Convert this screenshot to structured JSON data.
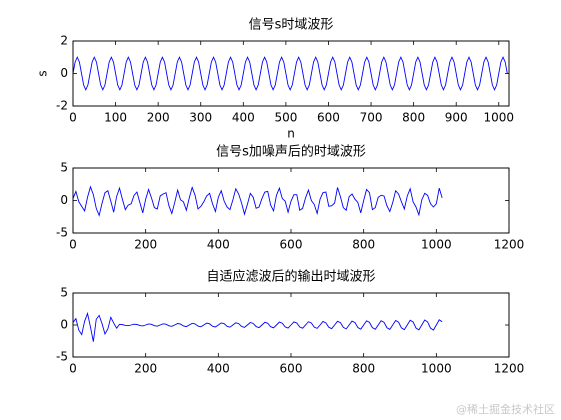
{
  "chart_data": [
    {
      "type": "line",
      "title": "信号s时域波形",
      "xlabel": "n",
      "ylabel": "s",
      "color": "#0000ff",
      "xlim": [
        0,
        1024
      ],
      "ylim": [
        -2,
        2
      ],
      "xticks": [
        0,
        100,
        200,
        300,
        400,
        500,
        600,
        700,
        800,
        900,
        1000
      ],
      "yticks": [
        -2,
        0,
        2
      ],
      "x": [
        0,
        5,
        10,
        15,
        20,
        25,
        30,
        35,
        40,
        45,
        50,
        55,
        60,
        65,
        70,
        75,
        80,
        85,
        90,
        95,
        100,
        105,
        110,
        115,
        120,
        125,
        130,
        135,
        140,
        145,
        150,
        155,
        160,
        165,
        170,
        175,
        180,
        185,
        190,
        195,
        200,
        205,
        210,
        215,
        220,
        225,
        230,
        235,
        240,
        245,
        250,
        255,
        260,
        265,
        270,
        275,
        280,
        285,
        290,
        295,
        300,
        305,
        310,
        315,
        320,
        325,
        330,
        335,
        340,
        345,
        350,
        355,
        360,
        365,
        370,
        375,
        380,
        385,
        390,
        395,
        400,
        405,
        410,
        415,
        420,
        425,
        430,
        435,
        440,
        445,
        450,
        455,
        460,
        465,
        470,
        475,
        480,
        485,
        490,
        495,
        500,
        505,
        510,
        515,
        520,
        525,
        530,
        535,
        540,
        545,
        550,
        555,
        560,
        565,
        570,
        575,
        580,
        585,
        590,
        595,
        600,
        605,
        610,
        615,
        620,
        625,
        630,
        635,
        640,
        645,
        650,
        655,
        660,
        665,
        670,
        675,
        680,
        685,
        690,
        695,
        700,
        705,
        710,
        715,
        720,
        725,
        730,
        735,
        740,
        745,
        750,
        755,
        760,
        765,
        770,
        775,
        780,
        785,
        790,
        795,
        800,
        805,
        810,
        815,
        820,
        825,
        830,
        835,
        840,
        845,
        850,
        855,
        860,
        865,
        870,
        875,
        880,
        885,
        890,
        895,
        900,
        905,
        910,
        915,
        920,
        925,
        930,
        935,
        940,
        945,
        950,
        955,
        960,
        965,
        970,
        975,
        980,
        985,
        990,
        995,
        1000,
        1005,
        1010,
        1015,
        1020
      ],
      "values": [
        0,
        0.71,
        1,
        0.71,
        0,
        -0.71,
        -1,
        -0.71,
        0,
        0.71,
        1,
        0.71,
        0,
        -0.71,
        -1,
        -0.71,
        0,
        0.71,
        1,
        0.71,
        0,
        -0.71,
        -1,
        -0.71,
        0,
        0.71,
        1,
        0.71,
        0,
        -0.71,
        -1,
        -0.71,
        0,
        0.71,
        1,
        0.71,
        0,
        -0.71,
        -1,
        -0.71,
        0,
        0.71,
        1,
        0.71,
        0,
        -0.71,
        -1,
        -0.71,
        0,
        0.71,
        1,
        0.71,
        0,
        -0.71,
        -1,
        -0.71,
        0,
        0.71,
        1,
        0.71,
        0,
        -0.71,
        -1,
        -0.71,
        0,
        0.71,
        1,
        0.71,
        0,
        -0.71,
        -1,
        -0.71,
        0,
        0.71,
        1,
        0.71,
        0,
        -0.71,
        -1,
        -0.71,
        0,
        0.71,
        1,
        0.71,
        0,
        -0.71,
        -1,
        -0.71,
        0,
        0.71,
        1,
        0.71,
        0,
        -0.71,
        -1,
        -0.71,
        0,
        0.71,
        1,
        0.71,
        0,
        -0.71,
        -1,
        -0.71,
        0,
        0.71,
        1,
        0.71,
        0,
        -0.71,
        -1,
        -0.71,
        0,
        0.71,
        1,
        0.71,
        0,
        -0.71,
        -1,
        -0.71,
        0,
        0.71,
        1,
        0.71,
        0,
        -0.71,
        -1,
        -0.71,
        0,
        0.71,
        1,
        0.71,
        0,
        -0.71,
        -1,
        -0.71,
        0,
        0.71,
        1,
        0.71,
        0,
        -0.71,
        -1,
        -0.71,
        0,
        0.71,
        1,
        0.71,
        0,
        -0.71,
        -1,
        -0.71,
        0,
        0.71,
        1,
        0.71,
        0,
        -0.71,
        -1,
        -0.71,
        0,
        0.71,
        1,
        0.71,
        0,
        -0.71,
        -1,
        -0.71,
        0,
        0.71,
        1,
        0.71,
        0,
        -0.71,
        -1,
        -0.71,
        0,
        0.71,
        1,
        0.71,
        0,
        -0.71,
        -1,
        -0.71,
        0,
        0.71,
        1,
        0.71,
        0,
        -0.71,
        -1,
        -0.71,
        0,
        0.71,
        1,
        0.71,
        0,
        -0.71,
        -1,
        -0.71,
        0,
        0.71,
        1,
        0.71,
        0
      ]
    },
    {
      "type": "line",
      "title": "信号s加噪声后的时域波形",
      "color": "#0000ff",
      "xlim": [
        0,
        1200
      ],
      "ylim": [
        -5,
        5
      ],
      "xticks": [
        0,
        200,
        400,
        600,
        800,
        1000,
        1200
      ],
      "yticks": [
        -5,
        0,
        5
      ],
      "x": [
        0,
        8,
        16,
        24,
        32,
        40,
        48,
        56,
        64,
        72,
        80,
        88,
        96,
        104,
        112,
        120,
        128,
        136,
        144,
        152,
        160,
        168,
        176,
        184,
        192,
        200,
        208,
        216,
        224,
        232,
        240,
        248,
        256,
        264,
        272,
        280,
        288,
        296,
        304,
        312,
        320,
        328,
        336,
        344,
        352,
        360,
        368,
        376,
        384,
        392,
        400,
        408,
        416,
        424,
        432,
        440,
        448,
        456,
        464,
        472,
        480,
        488,
        496,
        504,
        512,
        520,
        528,
        536,
        544,
        552,
        560,
        568,
        576,
        584,
        592,
        600,
        608,
        616,
        624,
        632,
        640,
        648,
        656,
        664,
        672,
        680,
        688,
        696,
        704,
        712,
        720,
        728,
        736,
        744,
        752,
        760,
        768,
        776,
        784,
        792,
        800,
        808,
        816,
        824,
        832,
        840,
        848,
        856,
        864,
        872,
        880,
        888,
        896,
        904,
        912,
        920,
        928,
        936,
        944,
        952,
        960,
        968,
        976,
        984,
        992,
        1000,
        1008,
        1016
      ],
      "values": [
        0.3,
        1.4,
        -0.2,
        -0.9,
        -1.6,
        0.5,
        2.1,
        0.9,
        -1.2,
        -2.3,
        -0.4,
        1.2,
        1.5,
        -0.1,
        -1.8,
        0.6,
        1.9,
        0.2,
        -1.4,
        -0.7,
        -0.5,
        0.8,
        1.3,
        -0.3,
        -1.9,
        0.2,
        1.7,
        0.4,
        -1.1,
        -1.3,
        0.7,
        1.0,
        1.2,
        -0.8,
        -2.0,
        -0.3,
        1.6,
        0.1,
        -0.2,
        -1.5,
        0.4,
        2.0,
        0.8,
        -1.3,
        -0.9,
        -0.2,
        0.7,
        1.1,
        -0.5,
        -1.7,
        0.5,
        1.5,
        -0.1,
        -1.0,
        -1.4,
        0.1,
        1.8,
        1.0,
        -0.4,
        -2.1,
        -0.6,
        1.1,
        0.5,
        -1.2,
        -1.0,
        0.3,
        1.3,
        1.4,
        -0.7,
        -1.6,
        0.8,
        1.9,
        0.3,
        -0.1,
        -1.8,
        -0.1,
        0.9,
        0.9,
        -1.5,
        -1.2,
        0.4,
        1.6,
        0.0,
        -0.6,
        -2.0,
        0.2,
        1.2,
        1.3,
        -0.9,
        -0.8,
        -0.4,
        2.0,
        0.6,
        -1.1,
        -1.5,
        0.6,
        1.0,
        0.2,
        -0.3,
        -1.9,
        0.0,
        1.7,
        1.2,
        -1.4,
        -1.1,
        0.5,
        0.8,
        0.7,
        -0.8,
        -1.7,
        -0.3,
        1.5,
        1.0,
        -0.2,
        -1.3,
        0.7,
        1.8,
        -0.2,
        -1.0,
        -2.2,
        0.1,
        1.1,
        0.8,
        -0.5,
        -1.0,
        -0.5,
        1.9,
        0.4
      ]
    },
    {
      "type": "line",
      "title": "自适应滤波后的输出时域波形",
      "color": "#0000ff",
      "xlim": [
        0,
        1200
      ],
      "ylim": [
        -5,
        5
      ],
      "xticks": [
        0,
        200,
        400,
        600,
        800,
        1000,
        1200
      ],
      "yticks": [
        -5,
        0,
        5
      ],
      "x": [
        0,
        8,
        16,
        24,
        32,
        40,
        48,
        56,
        64,
        72,
        80,
        88,
        96,
        104,
        112,
        120,
        128,
        136,
        144,
        152,
        160,
        168,
        176,
        184,
        192,
        200,
        208,
        216,
        224,
        232,
        240,
        248,
        256,
        264,
        272,
        280,
        288,
        296,
        304,
        312,
        320,
        328,
        336,
        344,
        352,
        360,
        368,
        376,
        384,
        392,
        400,
        408,
        416,
        424,
        432,
        440,
        448,
        456,
        464,
        472,
        480,
        488,
        496,
        504,
        512,
        520,
        528,
        536,
        544,
        552,
        560,
        568,
        576,
        584,
        592,
        600,
        608,
        616,
        624,
        632,
        640,
        648,
        656,
        664,
        672,
        680,
        688,
        696,
        704,
        712,
        720,
        728,
        736,
        744,
        752,
        760,
        768,
        776,
        784,
        792,
        800,
        808,
        816,
        824,
        832,
        840,
        848,
        856,
        864,
        872,
        880,
        888,
        896,
        904,
        912,
        920,
        928,
        936,
        944,
        952,
        960,
        968,
        976,
        984,
        992,
        1000,
        1008,
        1016
      ],
      "values": [
        0.4,
        1.0,
        -0.8,
        -1.5,
        0.6,
        1.8,
        -0.3,
        -2.6,
        0.9,
        1.5,
        0.2,
        -1.4,
        -0.6,
        1.2,
        0.3,
        -0.5,
        0.1,
        0.06,
        -0.07,
        -0.11,
        0,
        0.12,
        0.08,
        -0.09,
        -0.14,
        0,
        0.16,
        0.11,
        -0.11,
        -0.18,
        0,
        0.19,
        0.12,
        -0.13,
        -0.21,
        0,
        0.23,
        0.14,
        -0.15,
        -0.25,
        0,
        0.26,
        0.17,
        -0.17,
        -0.28,
        0,
        0.29,
        0.18,
        -0.19,
        -0.31,
        0,
        0.32,
        0.21,
        -0.21,
        -0.34,
        0,
        0.35,
        0.22,
        -0.23,
        -0.37,
        0,
        0.39,
        0.24,
        -0.25,
        -0.41,
        0,
        0.42,
        0.27,
        -0.27,
        -0.44,
        0,
        0.46,
        0.28,
        -0.29,
        -0.48,
        0,
        0.48,
        0.31,
        -0.31,
        -0.5,
        0,
        0.51,
        0.32,
        -0.33,
        -0.53,
        0,
        0.55,
        0.34,
        -0.35,
        -0.57,
        0,
        0.58,
        0.37,
        -0.37,
        -0.6,
        0,
        0.61,
        0.38,
        -0.39,
        -0.64,
        0,
        0.65,
        0.41,
        -0.41,
        -0.67,
        0,
        0.67,
        0.42,
        -0.43,
        -0.69,
        0,
        0.71,
        0.44,
        -0.45,
        -0.73,
        0,
        0.74,
        0.47,
        -0.47,
        -0.76,
        0,
        0.78,
        0.48,
        -0.49,
        -0.8,
        0,
        0.81,
        0.51
      ]
    }
  ],
  "watermark": "@稀土掘金技术社区"
}
